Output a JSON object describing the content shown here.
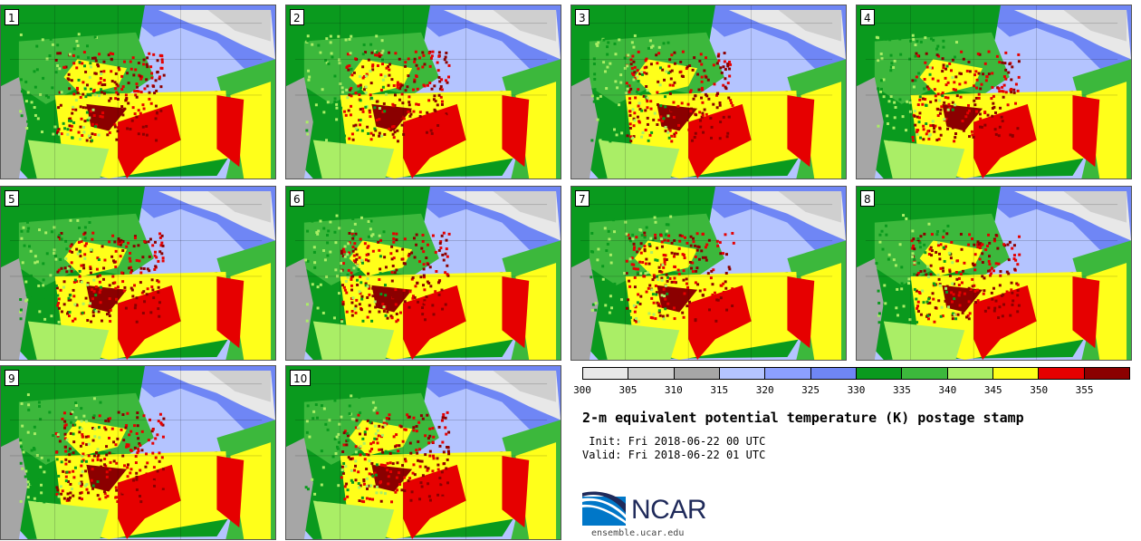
{
  "stamps": [
    {
      "label": "1"
    },
    {
      "label": "2"
    },
    {
      "label": "3"
    },
    {
      "label": "4"
    },
    {
      "label": "5"
    },
    {
      "label": "6"
    },
    {
      "label": "7"
    },
    {
      "label": "8"
    },
    {
      "label": "9"
    },
    {
      "label": "10"
    }
  ],
  "colorbar": {
    "colors": [
      "#e8e8e8",
      "#cfcfcf",
      "#a6a6a6",
      "#b4c4ff",
      "#8ca0ff",
      "#6f86f5",
      "#0a9a1e",
      "#3cb83c",
      "#aaee66",
      "#ffff1a",
      "#e60000",
      "#8b0000"
    ],
    "ticks": [
      "300",
      "305",
      "310",
      "315",
      "320",
      "325",
      "330",
      "335",
      "340",
      "345",
      "350",
      "355"
    ]
  },
  "title": "2-m equivalent potential temperature (K) postage stamp",
  "init": " Init: Fri 2018-06-22 00 UTC",
  "valid": "Valid: Fri 2018-06-22 01 UTC",
  "logo": {
    "text": "NCAR",
    "url_text": "ensemble.ucar.edu"
  }
}
